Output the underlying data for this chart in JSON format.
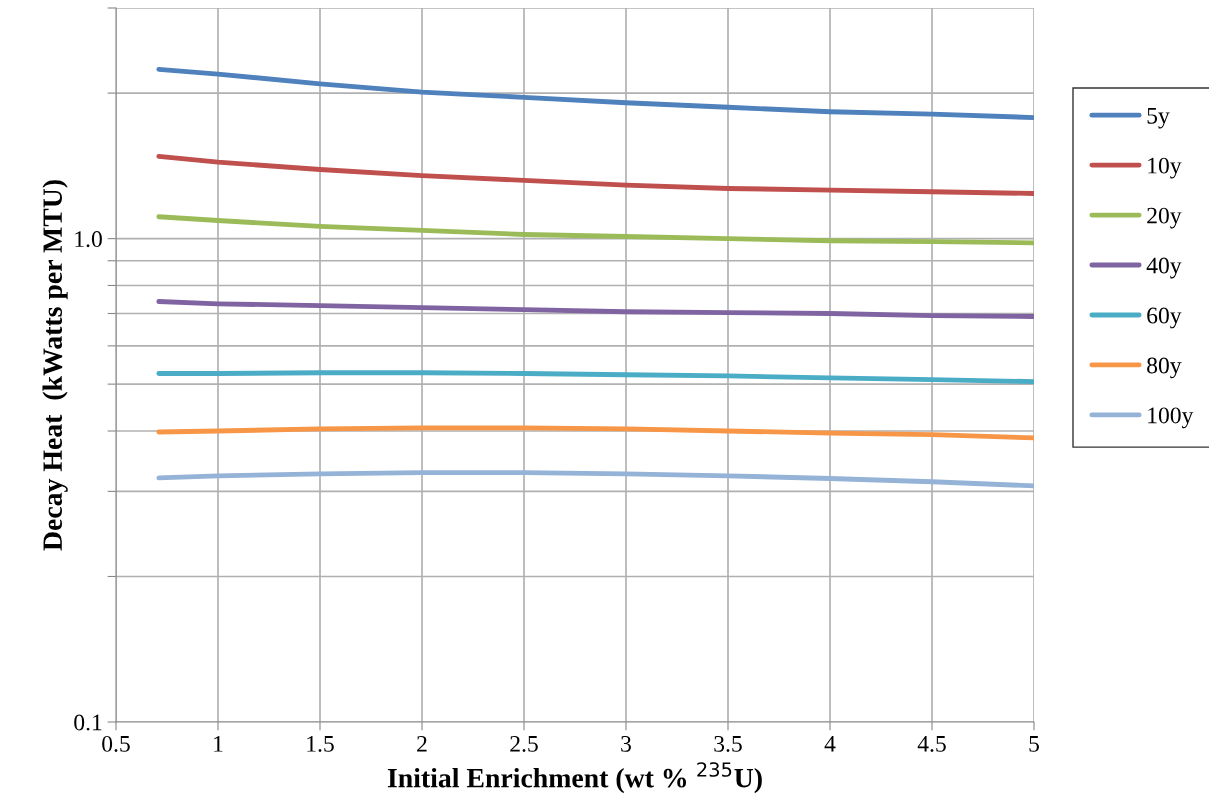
{
  "chart_data": {
    "type": "line",
    "xlabel": "Initial Enrichment (wt % $^{235}$U)",
    "ylabel": "Decay Heat  (kWatts per MTU)",
    "x": [
      0.71,
      1,
      1.5,
      2,
      2.5,
      3,
      3.5,
      4,
      4.5,
      5
    ],
    "series": [
      {
        "name": "5y",
        "color": "#4f81bd",
        "values": [
          2.24,
          2.19,
          2.09,
          2.01,
          1.96,
          1.91,
          1.87,
          1.83,
          1.81,
          1.78
        ]
      },
      {
        "name": "10y",
        "color": "#c0504d",
        "values": [
          1.48,
          1.44,
          1.39,
          1.35,
          1.32,
          1.29,
          1.27,
          1.26,
          1.25,
          1.24
        ]
      },
      {
        "name": "20y",
        "color": "#9bbb59",
        "values": [
          1.11,
          1.09,
          1.06,
          1.04,
          1.02,
          1.01,
          1.0,
          0.99,
          0.986,
          0.98
        ]
      },
      {
        "name": "40y",
        "color": "#8064a2",
        "values": [
          0.741,
          0.733,
          0.727,
          0.72,
          0.713,
          0.706,
          0.703,
          0.7,
          0.693,
          0.69
        ]
      },
      {
        "name": "60y",
        "color": "#4bacc6",
        "values": [
          0.526,
          0.526,
          0.528,
          0.528,
          0.526,
          0.523,
          0.52,
          0.515,
          0.511,
          0.506
        ]
      },
      {
        "name": "80y",
        "color": "#f79646",
        "values": [
          0.398,
          0.4,
          0.404,
          0.406,
          0.406,
          0.404,
          0.4,
          0.396,
          0.393,
          0.387
        ]
      },
      {
        "name": "100y",
        "color": "#95b3d7",
        "values": [
          0.32,
          0.323,
          0.326,
          0.328,
          0.328,
          0.326,
          0.323,
          0.319,
          0.314,
          0.308
        ]
      }
    ],
    "log": "y",
    "xlim": [
      0.5,
      5
    ],
    "xticks": [
      0.5,
      1,
      1.5,
      2,
      2.5,
      3,
      3.5,
      4,
      4.5,
      5
    ],
    "ylim": [
      0.1,
      3
    ],
    "yticks": [
      {
        "value": 0.1,
        "label": "0.1"
      },
      {
        "value": 0.2,
        "label": null
      },
      {
        "value": 0.3,
        "label": null
      },
      {
        "value": 0.4,
        "label": null
      },
      {
        "value": 0.5,
        "label": null
      },
      {
        "value": 0.6,
        "label": null
      },
      {
        "value": 0.7,
        "label": null
      },
      {
        "value": 0.8,
        "label": null
      },
      {
        "value": 0.9,
        "label": null
      },
      {
        "value": 1,
        "label": "1.0"
      },
      {
        "value": 2,
        "label": null
      },
      {
        "value": 3,
        "label": null
      }
    ],
    "grid": true,
    "legend": "right",
    "marker": "none",
    "line_style": "solid"
  }
}
